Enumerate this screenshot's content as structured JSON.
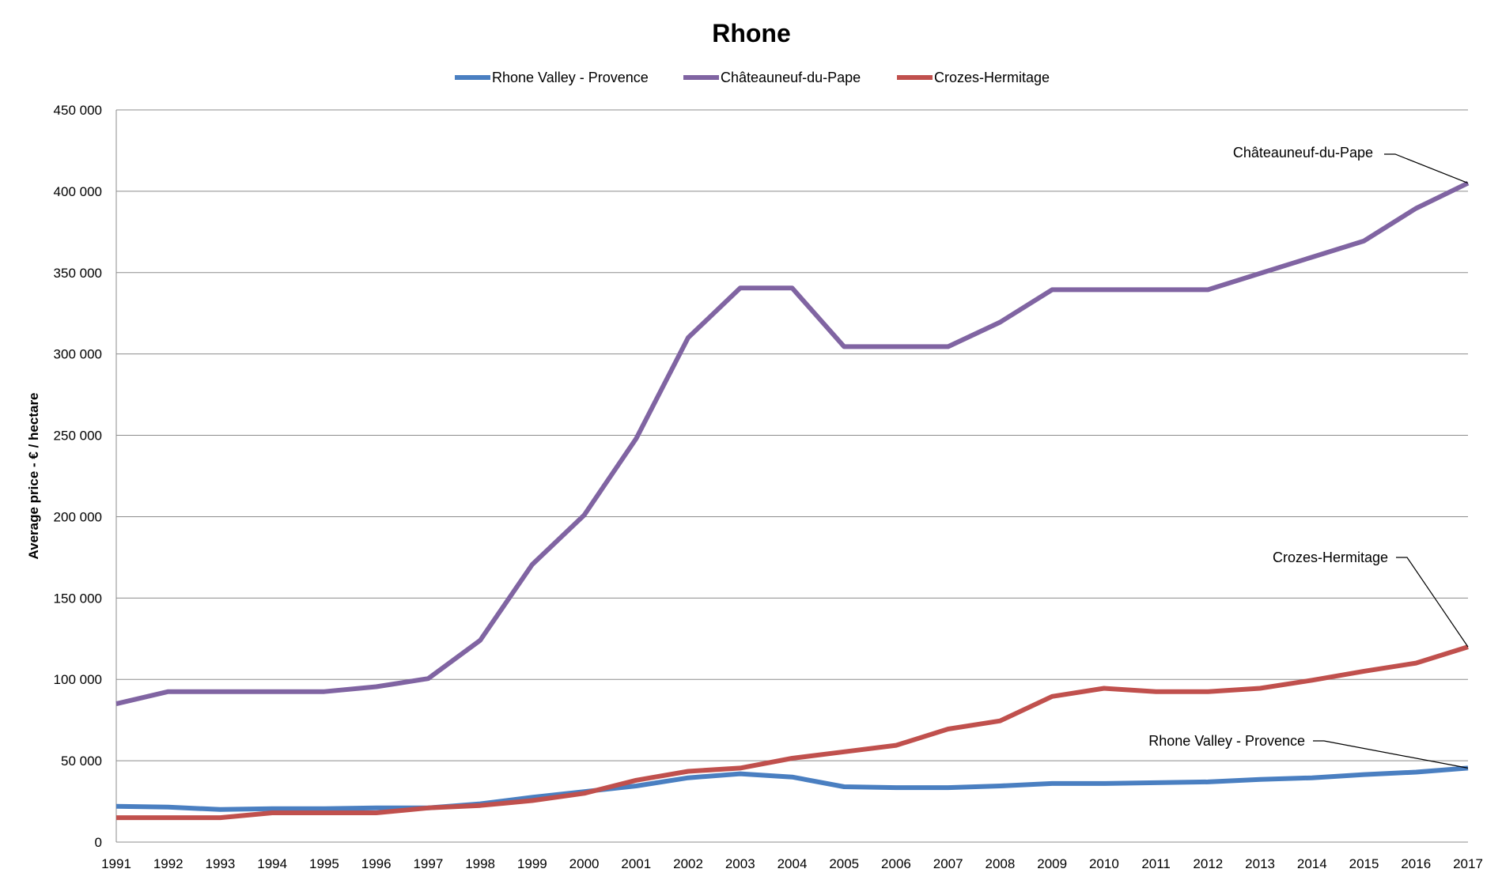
{
  "chart_data": {
    "type": "line",
    "title": "Rhone",
    "xlabel": "",
    "ylabel": "Average price - € / hectare",
    "ylim": [
      0,
      450000
    ],
    "y_ticks": [
      0,
      50000,
      100000,
      150000,
      200000,
      250000,
      300000,
      350000,
      400000,
      450000
    ],
    "y_tick_labels": [
      "0",
      "50 000",
      "100 000",
      "150 000",
      "200 000",
      "250 000",
      "300 000",
      "350 000",
      "400 000",
      "450 000"
    ],
    "grid": true,
    "legend_position": "top",
    "categories": [
      "1991",
      "1992",
      "1993",
      "1994",
      "1995",
      "1996",
      "1997",
      "1998",
      "1999",
      "2000",
      "2001",
      "2002",
      "2003",
      "2004",
      "2005",
      "2006",
      "2007",
      "2008",
      "2009",
      "2010",
      "2011",
      "2012",
      "2013",
      "2014",
      "2015",
      "2016",
      "2017"
    ],
    "series": [
      {
        "name": "Rhone Valley - Provence",
        "color": "#4a7fc1",
        "values": [
          22000,
          21500,
          20000,
          20500,
          20500,
          21000,
          21000,
          23500,
          27500,
          31000,
          34500,
          39500,
          42000,
          40000,
          34000,
          33500,
          33500,
          34500,
          36000,
          36000,
          36500,
          37000,
          38500,
          39500,
          41500,
          43000,
          45500
        ]
      },
      {
        "name": "Châteauneuf-du-Pape",
        "color": "#8064a2",
        "values": [
          85000,
          92500,
          92500,
          92500,
          92500,
          95500,
          100500,
          124000,
          170500,
          201000,
          248000,
          310000,
          340500,
          340500,
          304500,
          304500,
          304500,
          319500,
          339500,
          339500,
          339500,
          339500,
          349500,
          359500,
          369500,
          389500,
          405000
        ]
      },
      {
        "name": "Crozes-Hermitage",
        "color": "#c0504d",
        "values": [
          15000,
          15000,
          15000,
          18000,
          18000,
          18000,
          21000,
          22500,
          25500,
          30000,
          38000,
          43500,
          45500,
          51500,
          55500,
          59500,
          69500,
          74500,
          89500,
          94500,
          92500,
          92500,
          94500,
          99500,
          105000,
          110000,
          120000
        ]
      }
    ],
    "annotations": [
      {
        "text": "Châteauneuf-du-Pape",
        "series": "Châteauneuf-du-Pape",
        "x": "2017",
        "y": 405000
      },
      {
        "text": "Crozes-Hermitage",
        "series": "Crozes-Hermitage",
        "x": "2017",
        "y": 120000
      },
      {
        "text": "Rhone Valley - Provence",
        "series": "Rhone Valley - Provence",
        "x": "2017",
        "y": 45500
      }
    ]
  }
}
